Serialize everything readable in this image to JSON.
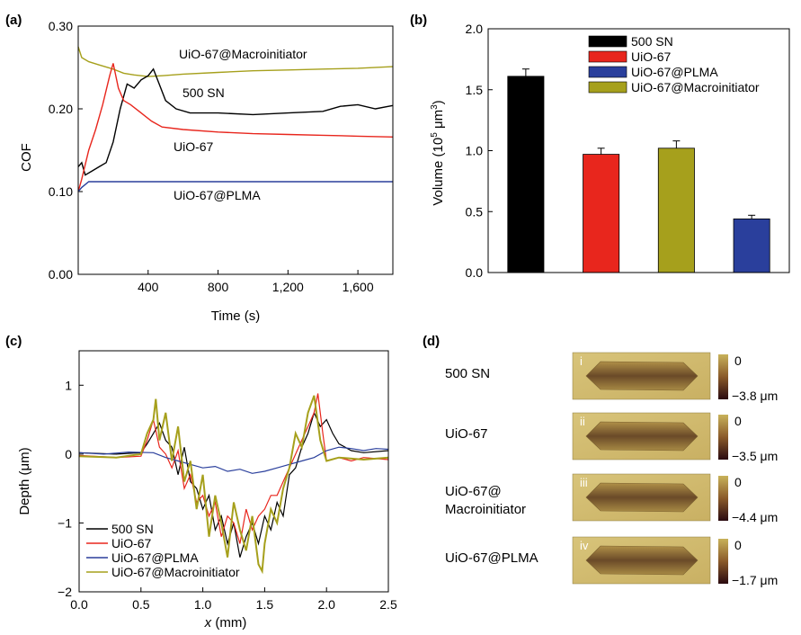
{
  "colors": {
    "black": "#000000",
    "red": "#e8261d",
    "blue": "#2a3f9c",
    "olive": "#a6a01c"
  },
  "panel_labels": {
    "a": "(a)",
    "b": "(b)",
    "c": "(c)",
    "d": "(d)"
  },
  "chart_data": [
    {
      "panel": "a",
      "type": "line",
      "xlabel": "Time (s)",
      "ylabel": "COF",
      "xlim": [
        0,
        1800
      ],
      "ylim": [
        0,
        0.3
      ],
      "xticks": [
        400,
        800,
        1200,
        1600
      ],
      "xtick_labels": [
        "400",
        "800",
        "1,200",
        "1,600"
      ],
      "yticks": [
        0,
        0.1,
        0.2,
        0.3
      ],
      "ytick_labels": [
        "0.00",
        "0.10",
        "0.20",
        "0.30"
      ],
      "series": [
        {
          "name": "UiO-67@Macroinitiator",
          "color": "#a6a01c",
          "x": [
            0,
            20,
            60,
            120,
            200,
            260,
            320,
            400,
            480,
            600,
            800,
            1000,
            1200,
            1400,
            1600,
            1800
          ],
          "y": [
            0.275,
            0.262,
            0.257,
            0.253,
            0.248,
            0.243,
            0.241,
            0.239,
            0.24,
            0.242,
            0.244,
            0.246,
            0.247,
            0.248,
            0.249,
            0.251
          ]
        },
        {
          "name": "500 SN",
          "color": "#000000",
          "x": [
            0,
            20,
            40,
            80,
            120,
            160,
            200,
            240,
            280,
            320,
            360,
            400,
            430,
            460,
            500,
            560,
            640,
            800,
            1000,
            1200,
            1400,
            1500,
            1600,
            1700,
            1800
          ],
          "y": [
            0.13,
            0.135,
            0.12,
            0.125,
            0.13,
            0.135,
            0.16,
            0.2,
            0.23,
            0.225,
            0.235,
            0.24,
            0.248,
            0.232,
            0.21,
            0.2,
            0.195,
            0.195,
            0.193,
            0.195,
            0.197,
            0.203,
            0.205,
            0.2,
            0.204
          ]
        },
        {
          "name": "UiO-67",
          "color": "#e8261d",
          "x": [
            0,
            20,
            60,
            100,
            140,
            180,
            200,
            230,
            260,
            300,
            360,
            420,
            480,
            600,
            800,
            1000,
            1200,
            1400,
            1600,
            1800
          ],
          "y": [
            0.1,
            0.115,
            0.15,
            0.175,
            0.205,
            0.24,
            0.255,
            0.225,
            0.21,
            0.205,
            0.195,
            0.185,
            0.178,
            0.175,
            0.172,
            0.17,
            0.169,
            0.168,
            0.167,
            0.166
          ]
        },
        {
          "name": "UiO-67@PLMA",
          "color": "#2a3f9c",
          "x": [
            0,
            20,
            60,
            120,
            200,
            400,
            800,
            1200,
            1600,
            1800
          ],
          "y": [
            0.1,
            0.105,
            0.112,
            0.112,
            0.112,
            0.112,
            0.112,
            0.112,
            0.112,
            0.112
          ]
        }
      ],
      "annotations": [
        "UiO-67@Macroinitiator",
        "500 SN",
        "UiO-67",
        "UiO-67@PLMA"
      ]
    },
    {
      "panel": "b",
      "type": "bar",
      "ylabel": "Volume (10",
      "ylabel_sup": "5",
      "ylabel_unit": " μm",
      "ylabel_unit_sup": "3",
      "ylabel_close": ")",
      "ylim": [
        0,
        2.0
      ],
      "yticks": [
        0,
        0.5,
        1.0,
        1.5,
        2.0
      ],
      "ytick_labels": [
        "0.0",
        "0.5",
        "1.0",
        "1.5",
        "2.0"
      ],
      "categories": [
        "500 SN",
        "UiO-67",
        "UiO-67@Macroinitiator",
        "UiO-67@PLMA"
      ],
      "values": [
        1.61,
        0.97,
        1.02,
        0.44
      ],
      "errors": [
        0.06,
        0.05,
        0.06,
        0.03
      ],
      "bar_colors": [
        "#000000",
        "#e8261d",
        "#a6a01c",
        "#2a3f9c"
      ],
      "legend": [
        {
          "name": "500 SN",
          "color": "#000000"
        },
        {
          "name": "UiO-67",
          "color": "#e8261d"
        },
        {
          "name": "UiO-67@PLMA",
          "color": "#2a3f9c"
        },
        {
          "name": "UiO-67@Macroinitiator",
          "color": "#a6a01c"
        }
      ],
      "legend_position": "top-right"
    },
    {
      "panel": "c",
      "type": "line",
      "xlabel_italic": "x",
      "xlabel_rest": " (mm)",
      "ylabel": "Depth (μm)",
      "xlim": [
        0,
        2.5
      ],
      "ylim": [
        -2,
        1.5
      ],
      "xticks": [
        0,
        0.5,
        1.0,
        1.5,
        2.0,
        2.5
      ],
      "xtick_labels": [
        "0.0",
        "0.5",
        "1.0",
        "1.5",
        "2.0",
        "2.5"
      ],
      "yticks": [
        -2,
        -1,
        0,
        1
      ],
      "ytick_labels": [
        "−2",
        "−1",
        "0",
        "1"
      ],
      "series": [
        {
          "name": "500 SN",
          "color": "#000000",
          "x": [
            0,
            0.3,
            0.5,
            0.55,
            0.6,
            0.65,
            0.7,
            0.75,
            0.8,
            0.85,
            0.9,
            0.95,
            1.0,
            1.05,
            1.1,
            1.15,
            1.2,
            1.25,
            1.3,
            1.35,
            1.4,
            1.45,
            1.5,
            1.55,
            1.6,
            1.65,
            1.7,
            1.75,
            1.8,
            1.85,
            1.9,
            1.95,
            2.0,
            2.05,
            2.1,
            2.2,
            2.3,
            2.5
          ],
          "y": [
            0.02,
            0.0,
            0.02,
            0.15,
            0.3,
            0.45,
            0.2,
            0.1,
            -0.3,
            0.1,
            -0.4,
            -0.5,
            -0.8,
            -0.6,
            -1.1,
            -0.9,
            -1.3,
            -1.0,
            -1.5,
            -1.2,
            -1.0,
            -1.3,
            -0.9,
            -1.1,
            -0.7,
            -0.9,
            -0.3,
            -0.2,
            0.1,
            0.3,
            0.6,
            0.4,
            0.5,
            0.3,
            0.15,
            0.05,
            0.02,
            0.05
          ]
        },
        {
          "name": "UiO-67",
          "color": "#e8261d",
          "x": [
            0,
            0.3,
            0.5,
            0.55,
            0.6,
            0.65,
            0.7,
            0.75,
            0.8,
            0.85,
            0.9,
            0.95,
            1.0,
            1.05,
            1.1,
            1.15,
            1.2,
            1.25,
            1.3,
            1.35,
            1.4,
            1.45,
            1.5,
            1.55,
            1.6,
            1.65,
            1.7,
            1.75,
            1.8,
            1.85,
            1.9,
            1.93,
            1.97,
            2.0,
            2.1,
            2.2,
            2.3,
            2.5
          ],
          "y": [
            -0.02,
            -0.05,
            -0.03,
            0.2,
            0.5,
            0.1,
            0.0,
            -0.2,
            0.05,
            -0.5,
            -0.3,
            -0.7,
            -0.6,
            -0.9,
            -0.7,
            -1.2,
            -0.9,
            -1.0,
            -1.3,
            -0.8,
            -1.1,
            -0.9,
            -0.8,
            -0.6,
            -0.6,
            -0.4,
            -0.2,
            0.0,
            0.2,
            0.4,
            0.6,
            0.88,
            0.3,
            -0.1,
            -0.05,
            -0.1,
            -0.05,
            -0.08
          ]
        },
        {
          "name": "UiO-67@PLMA",
          "color": "#2a3f9c",
          "x": [
            0,
            0.2,
            0.4,
            0.6,
            0.7,
            0.8,
            0.9,
            1.0,
            1.1,
            1.2,
            1.3,
            1.4,
            1.5,
            1.6,
            1.7,
            1.8,
            1.9,
            2.0,
            2.1,
            2.2,
            2.3,
            2.4,
            2.5
          ],
          "y": [
            0.02,
            0.0,
            0.03,
            0.02,
            -0.05,
            -0.1,
            -0.15,
            -0.2,
            -0.18,
            -0.25,
            -0.22,
            -0.28,
            -0.25,
            -0.2,
            -0.15,
            -0.1,
            -0.05,
            0.05,
            0.1,
            0.08,
            0.05,
            0.08,
            0.07
          ]
        },
        {
          "name": "UiO-67@Macroinitiator",
          "color": "#a6a01c",
          "x": [
            0,
            0.3,
            0.5,
            0.55,
            0.6,
            0.62,
            0.65,
            0.7,
            0.75,
            0.8,
            0.85,
            0.9,
            0.95,
            1.0,
            1.05,
            1.1,
            1.15,
            1.2,
            1.25,
            1.3,
            1.35,
            1.4,
            1.45,
            1.48,
            1.5,
            1.55,
            1.6,
            1.65,
            1.7,
            1.75,
            1.8,
            1.85,
            1.9,
            1.95,
            2.0,
            2.1,
            2.3,
            2.5
          ],
          "y": [
            -0.03,
            -0.05,
            0.0,
            0.3,
            0.5,
            0.8,
            0.2,
            0.6,
            -0.1,
            0.4,
            -0.4,
            -0.1,
            -0.8,
            -0.3,
            -1.2,
            -0.6,
            -1.0,
            -1.5,
            -0.7,
            -1.1,
            -1.4,
            -0.9,
            -1.6,
            -1.7,
            -1.3,
            -0.8,
            -1.0,
            -0.5,
            -0.2,
            0.3,
            0.1,
            0.6,
            0.85,
            0.2,
            -0.1,
            -0.05,
            -0.08,
            -0.05
          ]
        }
      ],
      "legend": [
        "500 SN",
        "UiO-67",
        "UiO-67@PLMA",
        "UiO-67@Macroinitiator"
      ],
      "legend_position": "bottom-left"
    }
  ],
  "panel_d": {
    "rows": [
      {
        "label": [
          "500 SN"
        ],
        "roman": "i",
        "max": "0",
        "min": "−3.8 μm"
      },
      {
        "label": [
          "UiO-67"
        ],
        "roman": "ii",
        "max": "0",
        "min": "−3.5 μm"
      },
      {
        "label": [
          "UiO-67@",
          "Macroinitiator"
        ],
        "roman": "iii",
        "max": "0",
        "min": "−4.4 μm"
      },
      {
        "label": [
          "UiO-67@PLMA"
        ],
        "roman": "iv",
        "max": "0",
        "min": "−1.7 μm"
      }
    ]
  }
}
